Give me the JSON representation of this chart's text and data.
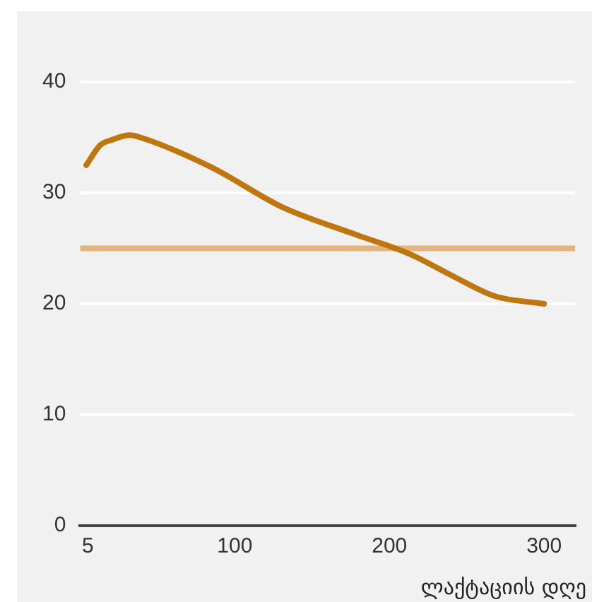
{
  "chart_data": {
    "type": "line",
    "xlabel": "ლაქტაციის დღე",
    "x": [
      4,
      13,
      21,
      32,
      39,
      85,
      131,
      177,
      213,
      241,
      268,
      300
    ],
    "series": [
      {
        "color": "#c0760f",
        "values": [
          32.5,
          34.3,
          34.8,
          35.2,
          35,
          32.3,
          28.7,
          26.3,
          24.5,
          22.5,
          20.7,
          20
        ]
      }
    ],
    "xlim": [
      0,
      320
    ],
    "xticks": [
      5,
      100,
      200,
      300
    ],
    "ylim": [
      0,
      40
    ],
    "yticks": [
      0,
      10,
      20,
      30,
      40
    ],
    "grid": "y",
    "legend": false,
    "marker": "none",
    "line_style": "solid",
    "ref_lines": [
      {
        "axis": "y",
        "value": 25,
        "color": "#e3b47c"
      }
    ]
  }
}
